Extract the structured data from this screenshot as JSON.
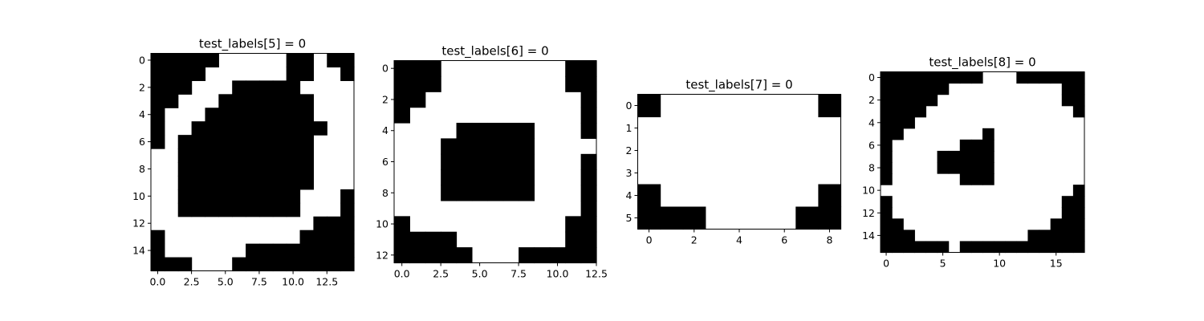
{
  "chart_data": [
    {
      "type": "heatmap",
      "title": "test_labels[5] = 0",
      "colormap": "binary",
      "nrows": 16,
      "ncols": 15,
      "xticks": [
        0,
        2.5,
        5,
        7.5,
        10,
        12.5
      ],
      "xtick_labels": [
        "0.0",
        "2.5",
        "5.0",
        "7.5",
        "10.0",
        "12.5"
      ],
      "yticks": [
        0,
        2,
        4,
        6,
        8,
        10,
        12,
        14
      ],
      "ytick_labels": [
        "0",
        "2",
        "4",
        "6",
        "8",
        "10",
        "12",
        "14"
      ],
      "grid": [
        "111110000011011",
        "111100000011001",
        "111000111110000",
        "110001111111000",
        "100011111111000",
        "100111111111100",
        "101111111111000",
        "001111111111000",
        "001111111111000",
        "001111111111000",
        "001111111110001",
        "001111111110001",
        "000000000000111",
        "100000000001111",
        "100000011111111",
        "111000111111111"
      ]
    },
    {
      "type": "heatmap",
      "title": "test_labels[6] = 0",
      "colormap": "binary",
      "nrows": 13,
      "ncols": 13,
      "xticks": [
        0,
        2.5,
        5,
        7.5,
        10,
        12.5
      ],
      "xtick_labels": [
        "0.0",
        "2.5",
        "5.0",
        "7.5",
        "10.0",
        "12.5"
      ],
      "yticks": [
        0,
        2,
        4,
        6,
        8,
        10,
        12
      ],
      "ytick_labels": [
        "0",
        "2",
        "4",
        "6",
        "8",
        "10",
        "12"
      ],
      "grid": [
        "1110000000011",
        "1110000000011",
        "1100000000001",
        "1000000000001",
        "0000111110001",
        "0001111110000",
        "0001111110001",
        "0001111110001",
        "0001111110001",
        "0000000000001",
        "1000000000011",
        "1111000000011",
        "1111100011111"
      ]
    },
    {
      "type": "heatmap",
      "title": "test_labels[7] = 0",
      "colormap": "binary",
      "nrows": 6,
      "ncols": 9,
      "xticks": [
        0,
        2,
        4,
        6,
        8
      ],
      "xtick_labels": [
        "0",
        "2",
        "4",
        "6",
        "8"
      ],
      "yticks": [
        0,
        1,
        2,
        3,
        4,
        5
      ],
      "ytick_labels": [
        "0",
        "1",
        "2",
        "3",
        "4",
        "5"
      ],
      "grid": [
        "100000001",
        "000000000",
        "000000000",
        "000000000",
        "100000001",
        "111000011"
      ]
    },
    {
      "type": "heatmap",
      "title": "test_labels[8] = 0",
      "colormap": "binary",
      "nrows": 16,
      "ncols": 18,
      "xticks": [
        0,
        5,
        10,
        15
      ],
      "xtick_labels": [
        "0",
        "5",
        "10",
        "15"
      ],
      "yticks": [
        0,
        2,
        4,
        6,
        8,
        10,
        12,
        14
      ],
      "ytick_labels": [
        "0",
        "2",
        "4",
        "6",
        "8",
        "10",
        "12",
        "14"
      ],
      "grid": [
        "111111111000111111",
        "111111000000000011",
        "111110000000000011",
        "111100000000000001",
        "111000000000000000",
        "110000000100000000",
        "100000011100000000",
        "100001111100000000",
        "100001111100000000",
        "100000011100000000",
        "000000000000000001",
        "100000000000000011",
        "100000000000000011",
        "110000000000000111",
        "111000000000011111",
        "111111011111111111"
      ]
    }
  ]
}
